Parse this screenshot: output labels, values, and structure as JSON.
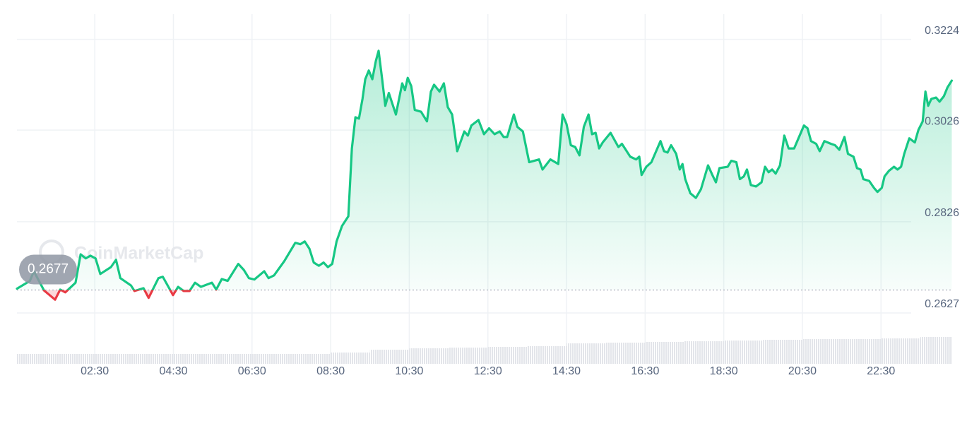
{
  "chart_data": {
    "type": "line",
    "watermark": "CoinMarketCap",
    "x": [
      0.52,
      0.85,
      0.95,
      1.21,
      1.49,
      1.62,
      1.75,
      2.01,
      2.14,
      2.27,
      2.39,
      2.52,
      2.64,
      2.91,
      3.04,
      3.15,
      3.42,
      3.51,
      3.74,
      3.87,
      4.12,
      4.23,
      4.49,
      4.62,
      4.76,
      4.91,
      5.05,
      5.2,
      5.48,
      5.59,
      5.73,
      5.88,
      6.15,
      6.29,
      6.42,
      6.56,
      6.81,
      6.92,
      7.06,
      7.32,
      7.6,
      7.73,
      7.84,
      7.96,
      8.07,
      8.2,
      8.32,
      8.43,
      8.54,
      8.65,
      8.79,
      8.95,
      9.04,
      9.13,
      9.22,
      9.31,
      9.38,
      9.47,
      9.56,
      9.65,
      9.72,
      9.81,
      9.89,
      9.98,
      10.16,
      10.32,
      10.39,
      10.46,
      10.55,
      10.64,
      10.8,
      10.95,
      11.05,
      11.13,
      11.27,
      11.38,
      11.48,
      11.59,
      11.72,
      11.9,
      11.99,
      12.08,
      12.26,
      12.4,
      12.53,
      12.67,
      12.8,
      12.9,
      12.99,
      13.16,
      13.25,
      13.39,
      13.55,
      13.8,
      13.89,
      14.09,
      14.29,
      14.4,
      14.5,
      14.61,
      14.72,
      14.83,
      14.94,
      15.06,
      15.15,
      15.24,
      15.33,
      15.42,
      15.62,
      15.82,
      15.91,
      16.12,
      16.27,
      16.35,
      16.41,
      16.53,
      16.66,
      16.89,
      16.98,
      17.07,
      17.16,
      17.29,
      17.38,
      17.45,
      17.52,
      17.65,
      17.79,
      17.92,
      18.1,
      18.21,
      18.3,
      18.39,
      18.6,
      18.69,
      18.82,
      18.91,
      19.01,
      19.09,
      19.19,
      19.32,
      19.46,
      19.55,
      19.64,
      19.73,
      19.82,
      19.93,
      20.04,
      20.15,
      20.29,
      20.4,
      20.54,
      20.63,
      20.72,
      20.85,
      20.94,
      21.06,
      21.23,
      21.33,
      21.44,
      21.57,
      21.66,
      21.8,
      21.89,
      21.98,
      22.05,
      22.2,
      22.32,
      22.41,
      22.52,
      22.59,
      22.7,
      22.83,
      22.92,
      23.01,
      23.09,
      23.22,
      23.36,
      23.45,
      23.56,
      23.63,
      23.7,
      23.78,
      23.9,
      23.99,
      24.1,
      24.19,
      24.3
    ],
    "series": [
      {
        "color": "#16c784",
        "down_color": "#ea3943",
        "values": [
          0.268,
          0.2697,
          0.2718,
          0.2676,
          0.2656,
          0.2678,
          0.2672,
          0.2693,
          0.2755,
          0.2746,
          0.2752,
          0.2746,
          0.2712,
          0.2727,
          0.2743,
          0.2703,
          0.2687,
          0.2675,
          0.2681,
          0.266,
          0.2703,
          0.2706,
          0.2666,
          0.2684,
          0.2675,
          0.2675,
          0.2693,
          0.2684,
          0.2693,
          0.2678,
          0.2701,
          0.2697,
          0.2734,
          0.2721,
          0.2703,
          0.27,
          0.2718,
          0.2703,
          0.2709,
          0.274,
          0.278,
          0.2777,
          0.2783,
          0.2767,
          0.2737,
          0.273,
          0.2737,
          0.2727,
          0.2734,
          0.2783,
          0.2817,
          0.2838,
          0.2986,
          0.3054,
          0.3051,
          0.3094,
          0.3137,
          0.3156,
          0.3137,
          0.3177,
          0.3199,
          0.3137,
          0.3079,
          0.3107,
          0.306,
          0.3128,
          0.3113,
          0.314,
          0.3122,
          0.307,
          0.3066,
          0.3045,
          0.311,
          0.3125,
          0.311,
          0.3128,
          0.3076,
          0.306,
          0.298,
          0.3023,
          0.3014,
          0.3036,
          0.3048,
          0.3017,
          0.303,
          0.3017,
          0.3023,
          0.3011,
          0.3011,
          0.306,
          0.3033,
          0.3023,
          0.2956,
          0.2962,
          0.294,
          0.2962,
          0.2952,
          0.306,
          0.3039,
          0.2993,
          0.2989,
          0.2971,
          0.3033,
          0.306,
          0.3017,
          0.302,
          0.2986,
          0.2999,
          0.302,
          0.2989,
          0.2996,
          0.2968,
          0.2962,
          0.2968,
          0.2928,
          0.2946,
          0.2956,
          0.3002,
          0.298,
          0.2977,
          0.2993,
          0.2974,
          0.294,
          0.2952,
          0.2919,
          0.2888,
          0.2878,
          0.2897,
          0.2949,
          0.2928,
          0.2912,
          0.2943,
          0.2946,
          0.2959,
          0.2956,
          0.2919,
          0.2925,
          0.294,
          0.2906,
          0.2903,
          0.2912,
          0.2946,
          0.2934,
          0.294,
          0.2931,
          0.2949,
          0.3014,
          0.2986,
          0.2986,
          0.3008,
          0.3036,
          0.303,
          0.3002,
          0.2996,
          0.298,
          0.3002,
          0.2996,
          0.2993,
          0.2983,
          0.3011,
          0.2974,
          0.2968,
          0.2943,
          0.294,
          0.2919,
          0.2915,
          0.29,
          0.2891,
          0.29,
          0.2925,
          0.2937,
          0.2946,
          0.294,
          0.2946,
          0.2974,
          0.3008,
          0.2999,
          0.3026,
          0.3045,
          0.311,
          0.3079,
          0.3094,
          0.3097,
          0.3088,
          0.31,
          0.3119,
          0.3134
        ]
      }
    ],
    "baseline": 0.2677,
    "xlim": [
      0.52,
      24.31
    ],
    "ylim": [
      0.2516,
      0.3279
    ],
    "xticks": [
      {
        "value": 2.5,
        "label": "02:30"
      },
      {
        "value": 4.5,
        "label": "04:30"
      },
      {
        "value": 6.5,
        "label": "06:30"
      },
      {
        "value": 8.5,
        "label": "08:30"
      },
      {
        "value": 10.5,
        "label": "10:30"
      },
      {
        "value": 12.5,
        "label": "12:30"
      },
      {
        "value": 14.5,
        "label": "14:30"
      },
      {
        "value": 16.5,
        "label": "16:30"
      },
      {
        "value": 18.5,
        "label": "18:30"
      },
      {
        "value": 20.5,
        "label": "20:30"
      },
      {
        "value": 22.5,
        "label": "22:30"
      }
    ],
    "yticks": [
      0.2627,
      0.2826,
      0.3026,
      0.3224
    ],
    "grid": true,
    "volume": {
      "color": "#e3e5ea",
      "lim": [
        0,
        40
      ],
      "x": [
        0.5,
        1.5,
        2.5,
        3.5,
        4.5,
        5.5,
        6.5,
        7.5,
        8.5,
        9.5,
        10.5,
        11.5,
        12.5,
        13.5,
        14.5,
        15.5,
        16.5,
        17.5,
        18.5,
        19.5,
        20.5,
        21.5,
        22.5,
        23.5
      ],
      "values": [
        14,
        14,
        14,
        14,
        14,
        14,
        14,
        14,
        16,
        20,
        22,
        23,
        24,
        25,
        29,
        30,
        31,
        32,
        33,
        34,
        35,
        35,
        36,
        38
      ]
    }
  }
}
